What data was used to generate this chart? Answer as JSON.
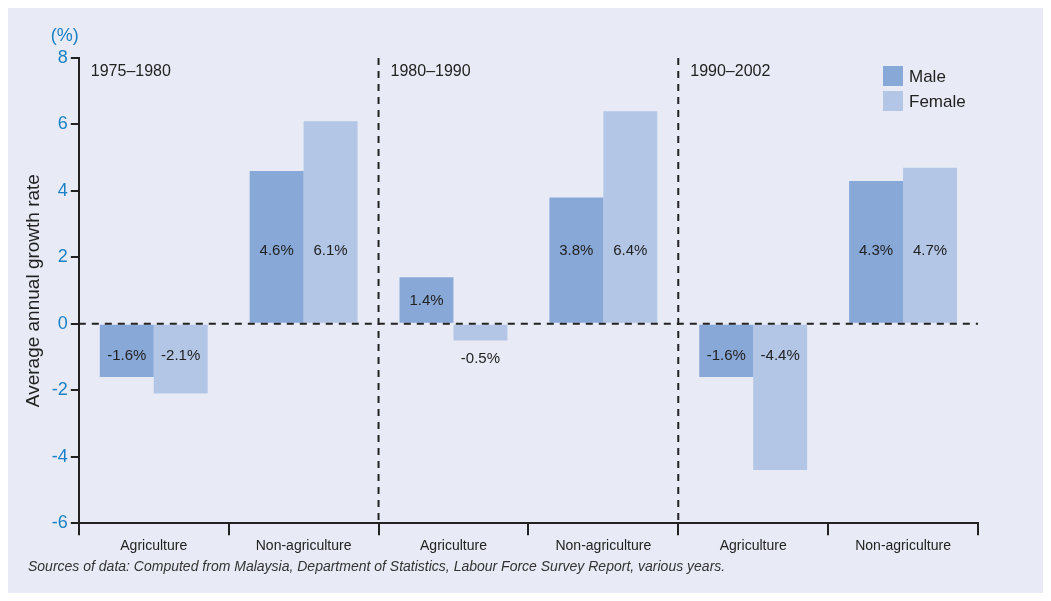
{
  "chart_data": {
    "type": "bar",
    "ylabel": "Average annual growth rate",
    "categories": [
      "Agriculture",
      "Non-agriculture",
      "Agriculture",
      "Non-agriculture",
      "Agriculture",
      "Non-agriculture"
    ],
    "series": [
      {
        "name": "Male",
        "color": "#88a8d8",
        "values": [
          -1.6,
          4.6,
          1.4,
          3.8,
          -1.6,
          4.3
        ],
        "value_labels": [
          "-1.6%",
          "4.6%",
          "1.4%",
          "3.8%",
          "-1.6%",
          "4.3%"
        ]
      },
      {
        "name": "Female",
        "color": "#b3c6e6",
        "values": [
          -2.1,
          6.1,
          -0.5,
          6.4,
          -4.4,
          4.7
        ],
        "value_labels": [
          "-2.1%",
          "6.1%",
          "-0.5%",
          "6.4%",
          "-4.4%",
          "4.7%"
        ]
      }
    ],
    "ylim": [
      -6,
      8
    ],
    "yticks": [
      -6,
      -4,
      -2,
      0,
      2,
      4,
      6,
      8
    ],
    "grid": false,
    "legend": "top right",
    "ref_lines": [
      {
        "axis": "y",
        "value": 0,
        "line_style": "dashed"
      }
    ],
    "annotations": [
      "1975–1980",
      "1980–1990",
      "1990–2002",
      "(%)",
      "Sources of data: Computed from Malaysia, Department of Statistics, Labour Force Survey Report, various years."
    ]
  }
}
